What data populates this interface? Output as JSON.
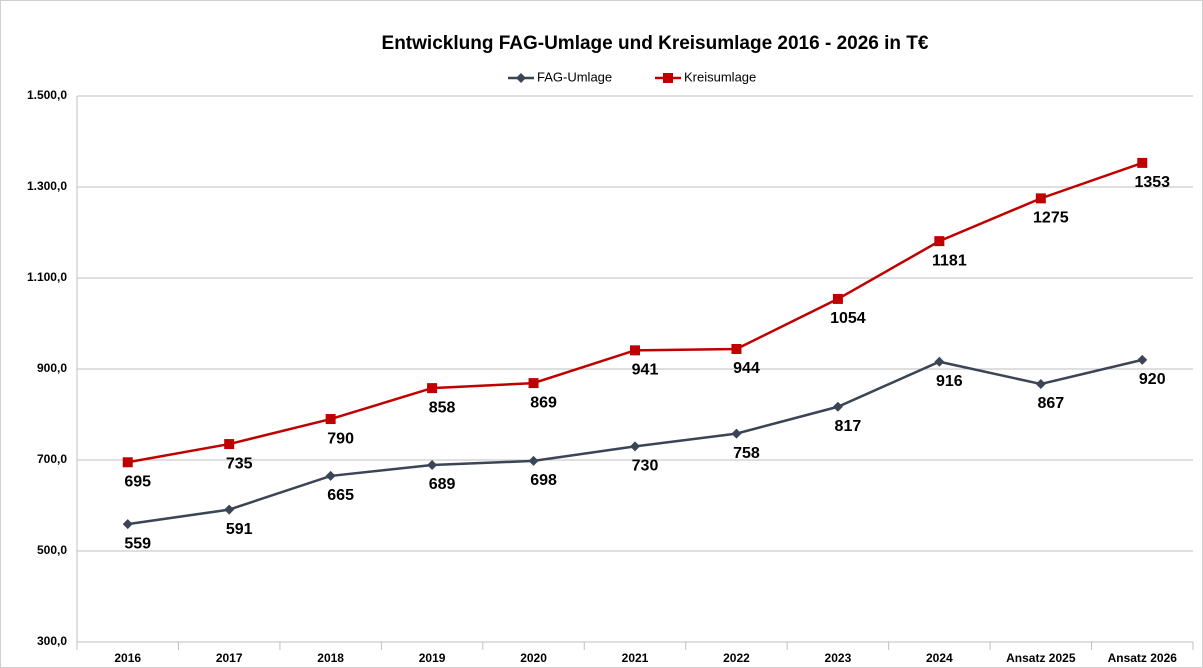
{
  "chart_data": {
    "type": "line",
    "title": "Entwicklung FAG-Umlage und Kreisumlage 2016 - 2026 in T€",
    "categories": [
      "2016",
      "2017",
      "2018",
      "2019",
      "2020",
      "2021",
      "2022",
      "2023",
      "2024",
      "Ansatz 2025",
      "Ansatz 2026"
    ],
    "series": [
      {
        "name": "FAG-Umlage",
        "color": "#3b4556",
        "marker": "diamond",
        "values": [
          559,
          591,
          665,
          689,
          698,
          730,
          758,
          817,
          916,
          867,
          920
        ]
      },
      {
        "name": "Kreisumlage",
        "color": "#c00000",
        "marker": "square",
        "values": [
          695,
          735,
          790,
          858,
          869,
          941,
          944,
          1054,
          1181,
          1275,
          1353
        ]
      }
    ],
    "ylim": [
      300,
      1500
    ],
    "yticks": [
      {
        "value": 300,
        "label": "300,0"
      },
      {
        "value": 500,
        "label": "500,0"
      },
      {
        "value": 700,
        "label": "700,0"
      },
      {
        "value": 900,
        "label": "900,0"
      },
      {
        "value": 1100,
        "label": "1.100,0"
      },
      {
        "value": 1300,
        "label": "1.300,0"
      },
      {
        "value": 1500,
        "label": "1.500,0"
      }
    ],
    "grid": true,
    "legend": "top"
  }
}
